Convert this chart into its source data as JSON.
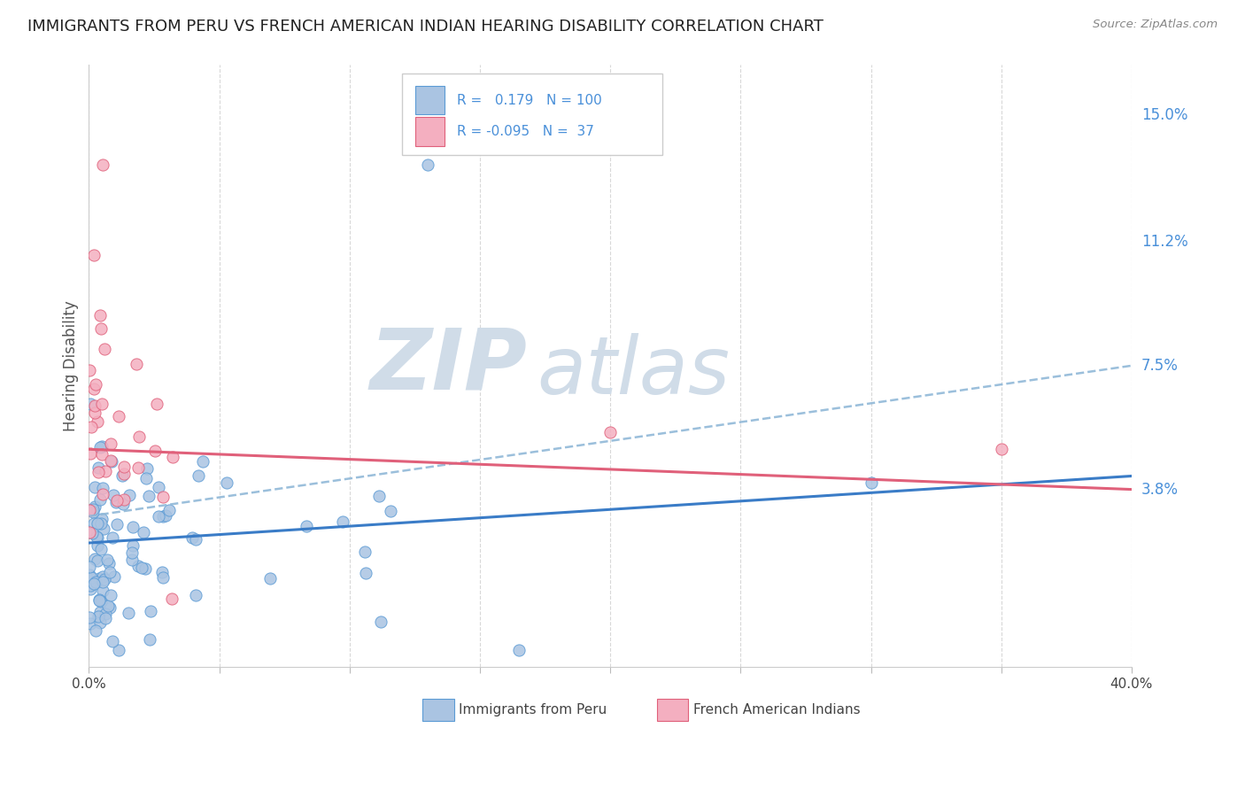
{
  "title": "IMMIGRANTS FROM PERU VS FRENCH AMERICAN INDIAN HEARING DISABILITY CORRELATION CHART",
  "source": "Source: ZipAtlas.com",
  "ylabel": "Hearing Disability",
  "ytick_vals": [
    0.0,
    0.038,
    0.075,
    0.112,
    0.15
  ],
  "ytick_labels": [
    "",
    "3.8%",
    "7.5%",
    "11.2%",
    "15.0%"
  ],
  "blue_R": 0.179,
  "blue_N": 100,
  "pink_R": -0.095,
  "pink_N": 37,
  "blue_fill": "#aac4e2",
  "blue_edge": "#5b9bd5",
  "pink_fill": "#f4afc0",
  "pink_edge": "#e0607a",
  "blue_solid_line": "#3a7cc7",
  "blue_dashed_line": "#90b8d8",
  "pink_solid_line": "#e0607a",
  "bg_color": "#ffffff",
  "grid_color": "#d8d8d8",
  "title_color": "#222222",
  "right_label_color": "#4a90d9",
  "watermark_text_color": "#d0dce8",
  "legend_text_color": "#4a90d9",
  "xlim": [
    0.0,
    0.4
  ],
  "ylim": [
    -0.015,
    0.165
  ]
}
